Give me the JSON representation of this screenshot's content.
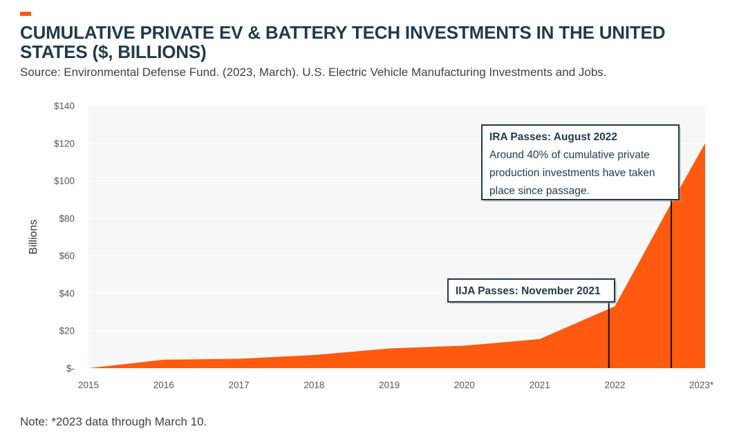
{
  "header": {
    "title": "CUMULATIVE PRIVATE EV & BATTERY TECH INVESTMENTS IN THE UNITED STATES ($, BILLIONS)",
    "source": "Source: Environmental Defense Fund. (2023, March). U.S. Electric Vehicle Manufacturing Investments and Jobs.",
    "note": "Note: *2023 data through March 10."
  },
  "colors": {
    "accent": "#ff5a0f",
    "area": "#ff5a0f",
    "title": "#1f3a4d",
    "plot_bg": "#f7f7f7",
    "grid": "#ffffff"
  },
  "chart_data": {
    "type": "area",
    "title": "CUMULATIVE PRIVATE EV & BATTERY TECH INVESTMENTS IN THE UNITED STATES ($, BILLIONS)",
    "xlabel": "",
    "ylabel": "Billions",
    "x": [
      2015,
      2016,
      2017,
      2018,
      2019,
      2020,
      2021,
      2022,
      2022.75,
      2023.2
    ],
    "x_ticks": [
      "2015",
      "2016",
      "2017",
      "2018",
      "2019",
      "2020",
      "2021",
      "2022",
      "2023*"
    ],
    "x_tick_values": [
      2015,
      2016,
      2017,
      2018,
      2019,
      2020,
      2021,
      2022,
      2023.15
    ],
    "values": [
      0,
      4.5,
      5,
      7,
      10.5,
      12,
      15.5,
      33,
      88,
      120
    ],
    "ylim": [
      0,
      140
    ],
    "y_ticks": [
      0,
      20,
      40,
      60,
      80,
      100,
      120,
      140
    ],
    "y_tick_labels": [
      "$-",
      "$20",
      "$40",
      "$60",
      "$80",
      "$100",
      "$120",
      "$140"
    ],
    "grid": true,
    "annotations": [
      {
        "id": "ijja",
        "x": 2021.92,
        "title": "IIJA Passes: November 2021",
        "lines": []
      },
      {
        "id": "ira",
        "x": 2022.75,
        "title": "IRA Passes: August 2022",
        "lines": [
          "Around 40% of cumulative private",
          "production investments have taken",
          "place since passage."
        ]
      }
    ]
  }
}
